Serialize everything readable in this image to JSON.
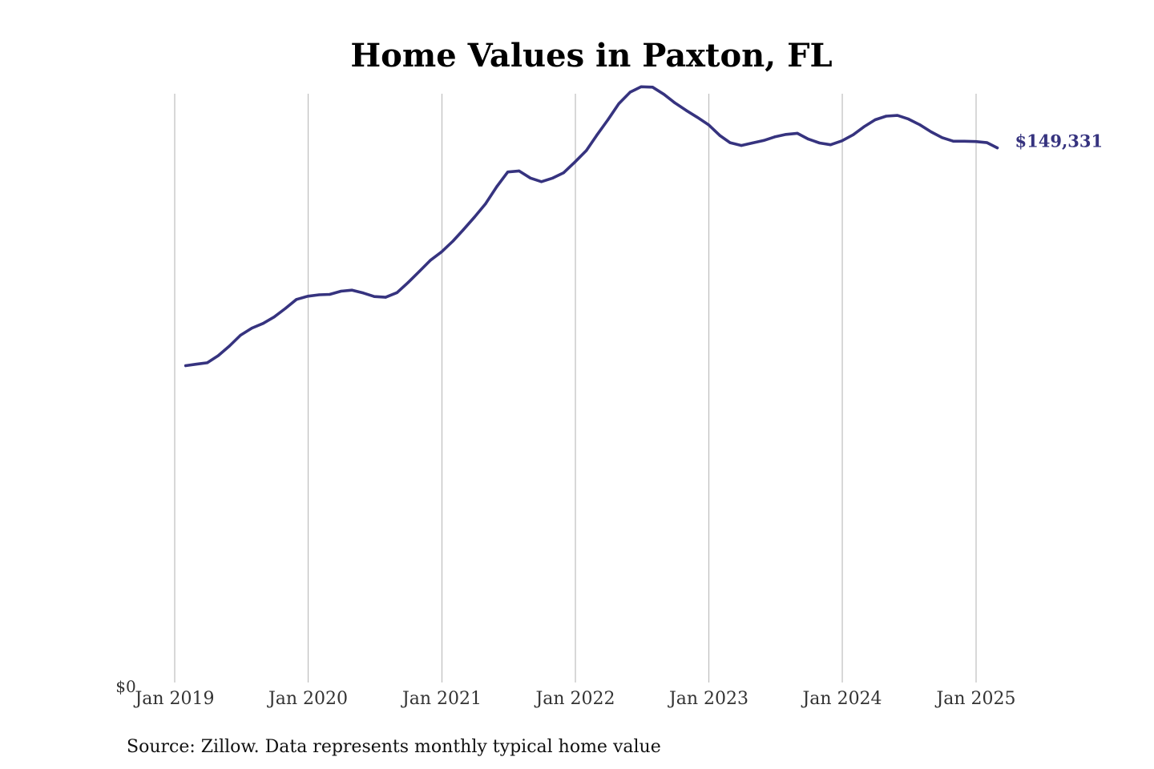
{
  "colors": {
    "line": "#36337f",
    "grid": "#bdbdbd",
    "background": "#ffffff"
  },
  "source_note": "Source: Zillow. Data represents monthly typical home value",
  "chart_data": {
    "type": "line",
    "title": "Home Values in Paxton, FL",
    "xlabel": "",
    "ylabel": "",
    "y_min_label": "$0",
    "end_label": "$149,331",
    "grid": "vertical",
    "ylim": [
      0,
      162000
    ],
    "xlim": [
      "2019-01-01",
      "2025-04-01"
    ],
    "x_ticks": [
      {
        "date": "2019-01-01",
        "label": "Jan 2019"
      },
      {
        "date": "2020-01-01",
        "label": "Jan 2020"
      },
      {
        "date": "2021-01-01",
        "label": "Jan 2021"
      },
      {
        "date": "2022-01-01",
        "label": "Jan 2022"
      },
      {
        "date": "2023-01-01",
        "label": "Jan 2023"
      },
      {
        "date": "2024-01-01",
        "label": "Jan 2024"
      },
      {
        "date": "2025-01-01",
        "label": "Jan 2025"
      }
    ],
    "series": [
      {
        "x": [
          "2019-01-31",
          "2019-02-28",
          "2019-03-31",
          "2019-04-30",
          "2019-05-31",
          "2019-06-30",
          "2019-07-31",
          "2019-08-31",
          "2019-09-30",
          "2019-10-31",
          "2019-11-30",
          "2019-12-31",
          "2020-01-31",
          "2020-02-29",
          "2020-03-31",
          "2020-04-30",
          "2020-05-31",
          "2020-06-30",
          "2020-07-31",
          "2020-08-31",
          "2020-09-30",
          "2020-10-31",
          "2020-11-30",
          "2020-12-31",
          "2021-01-31",
          "2021-02-28",
          "2021-03-31",
          "2021-04-30",
          "2021-05-31",
          "2021-06-30",
          "2021-07-31",
          "2021-08-31",
          "2021-09-30",
          "2021-10-31",
          "2021-11-30",
          "2021-12-31",
          "2022-01-31",
          "2022-02-28",
          "2022-03-31",
          "2022-04-30",
          "2022-05-31",
          "2022-06-30",
          "2022-07-31",
          "2022-08-31",
          "2022-09-30",
          "2022-10-31",
          "2022-11-30",
          "2022-12-31",
          "2023-01-31",
          "2023-02-28",
          "2023-03-31",
          "2023-04-30",
          "2023-05-31",
          "2023-06-30",
          "2023-07-31",
          "2023-08-31",
          "2023-09-30",
          "2023-10-31",
          "2023-11-30",
          "2023-12-31",
          "2024-01-31",
          "2024-02-29",
          "2024-03-31",
          "2024-04-30",
          "2024-05-31",
          "2024-06-30",
          "2024-07-31",
          "2024-08-31",
          "2024-09-30",
          "2024-10-31",
          "2024-11-30",
          "2024-12-31",
          "2025-01-31",
          "2025-02-28"
        ],
        "values": [
          88500,
          88900,
          89300,
          91300,
          94000,
          97000,
          99000,
          100300,
          102100,
          104500,
          107000,
          107900,
          108300,
          108400,
          109300,
          109600,
          108800,
          107800,
          107600,
          108900,
          111700,
          114800,
          117900,
          120300,
          123300,
          126400,
          130000,
          133700,
          138500,
          142600,
          142900,
          140900,
          139900,
          140900,
          142400,
          145400,
          148600,
          152800,
          157200,
          161700,
          164900,
          166400,
          166300,
          164300,
          161900,
          159800,
          157900,
          155800,
          152800,
          150800,
          150000,
          150700,
          151400,
          152400,
          153100,
          153400,
          151800,
          150700,
          150200,
          151300,
          153000,
          155200,
          157200,
          158200,
          158400,
          157400,
          155800,
          153800,
          152200,
          151200,
          151200,
          151100,
          150800,
          149331
        ]
      }
    ]
  }
}
